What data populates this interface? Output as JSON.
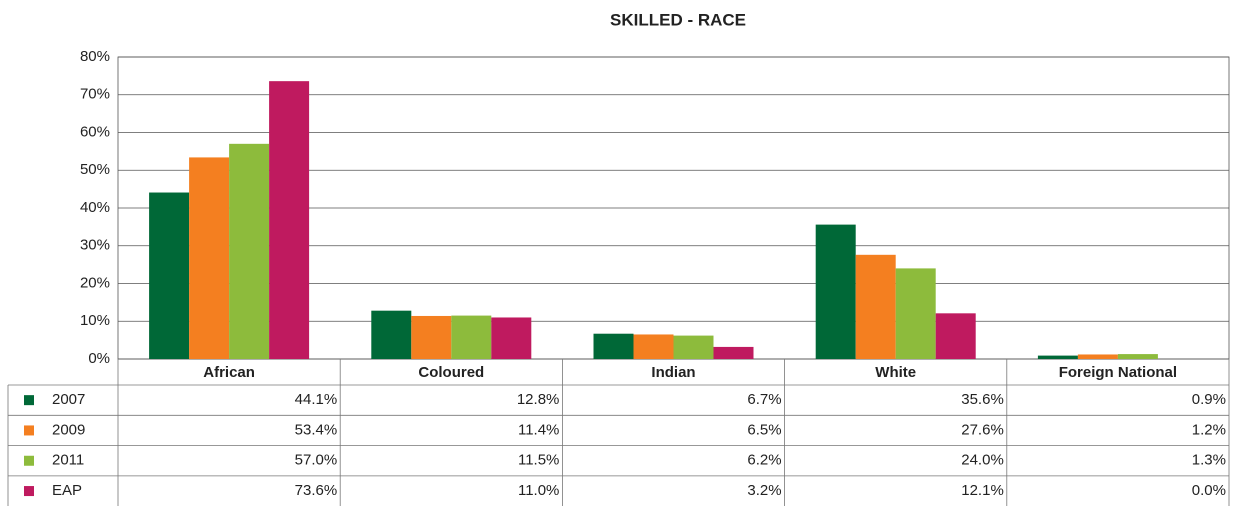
{
  "chart_data": {
    "type": "bar",
    "title": "SKILLED - RACE",
    "categories": [
      "African",
      "Coloured",
      "Indian",
      "White",
      "Foreign National"
    ],
    "series": [
      {
        "name": "2007",
        "color": "#006837",
        "values": [
          44.1,
          12.8,
          6.7,
          35.6,
          0.9
        ],
        "value_labels": [
          "44.1%",
          "12.8%",
          "6.7%",
          "35.6%",
          "0.9%"
        ]
      },
      {
        "name": "2009",
        "color": "#f47f20",
        "values": [
          53.4,
          11.4,
          6.5,
          27.6,
          1.2
        ],
        "value_labels": [
          "53.4%",
          "11.4%",
          "6.5%",
          "27.6%",
          "1.2%"
        ]
      },
      {
        "name": "2011",
        "color": "#8dbb3c",
        "values": [
          57.0,
          11.5,
          6.2,
          24.0,
          1.3
        ],
        "value_labels": [
          "57.0%",
          "11.5%",
          "6.2%",
          "24.0%",
          "1.3%"
        ]
      },
      {
        "name": "EAP",
        "color": "#bf1a5f",
        "values": [
          73.6,
          11.0,
          3.2,
          12.1,
          0.0
        ],
        "value_labels": [
          "73.6%",
          "11.0%",
          "3.2%",
          "12.1%",
          "0.0%"
        ]
      }
    ],
    "ylim": [
      0,
      80
    ],
    "yticks": [
      {
        "value": 0,
        "label": "0%"
      },
      {
        "value": 10,
        "label": "10%"
      },
      {
        "value": 20,
        "label": "20%"
      },
      {
        "value": 30,
        "label": "30%"
      },
      {
        "value": 40,
        "label": "40%"
      },
      {
        "value": 50,
        "label": "50%"
      },
      {
        "value": 60,
        "label": "60%"
      },
      {
        "value": 70,
        "label": "70%"
      },
      {
        "value": 80,
        "label": "80%"
      }
    ],
    "grid": true
  }
}
